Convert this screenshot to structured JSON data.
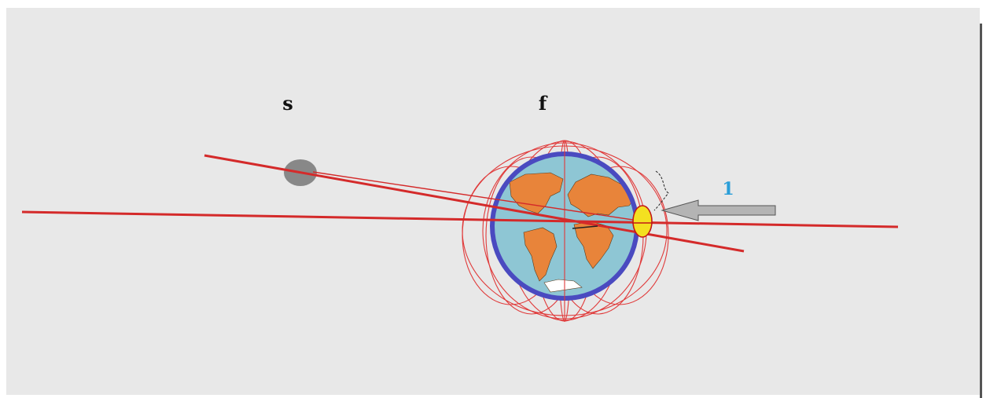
{
  "labels": {
    "body_left": "s",
    "body_center": "f",
    "arrow_number": "1"
  },
  "colors": {
    "background": "#e8e8e8",
    "line_red": "#d42a2a",
    "field_red": "#e03a3a",
    "earth_ring": "#4a4ac0",
    "ocean": "#8ec6d4",
    "land": "#e8843a",
    "moon": "#888888",
    "marker_yellow": "#f4e020",
    "arrow_gray": "#b4b4b4",
    "label_blue": "#2a9ed8",
    "label_black": "#111111"
  },
  "icons": {
    "arrow": "left-arrow-icon",
    "marker": "yellow-ellipse-marker"
  }
}
